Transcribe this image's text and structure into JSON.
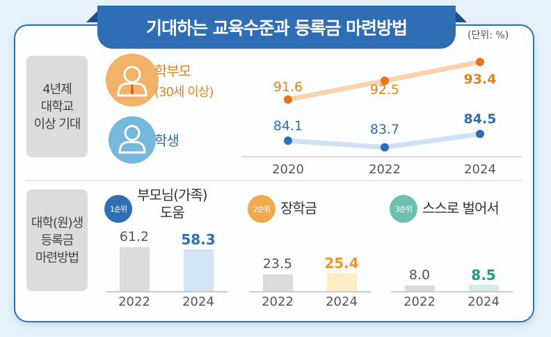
{
  "title": "기대하는 교육수준과 등록금 마련방법",
  "unit": "(단위: %)",
  "section1": {
    "label": "4년제\n대학교\n이상 기대",
    "parent_label": "학부모",
    "parent_sub": "(30세 이상)",
    "student_label": "학생"
  },
  "section2": {
    "label": "대학(원)생\n등록금\n마련방법"
  },
  "colors": {
    "blue": "#2f6db5",
    "orange": "#e0831b",
    "teal": "#1a9e8a"
  },
  "chart_data": [
    {
      "type": "line",
      "x": [
        "2020",
        "2022",
        "2024"
      ],
      "series": [
        {
          "name": "학부모 (30세 이상)",
          "values": [
            91.6,
            92.5,
            93.4
          ],
          "color": "#e8731a"
        },
        {
          "name": "학생",
          "values": [
            84.1,
            83.7,
            84.5
          ],
          "color": "#2f6db5"
        }
      ]
    },
    {
      "type": "bar",
      "groups": [
        {
          "rank": "1순위",
          "label": "부모님(가족)\n도움",
          "categories": [
            "2022",
            "2024"
          ],
          "values": [
            61.2,
            58.3
          ],
          "color": "#2f6db5"
        },
        {
          "rank": "2순위",
          "label": "장학금",
          "categories": [
            "2022",
            "2024"
          ],
          "values": [
            23.5,
            25.4
          ],
          "color": "#f0961e"
        },
        {
          "rank": "3순위",
          "label": "스스로 벌어서",
          "categories": [
            "2022",
            "2024"
          ],
          "values": [
            8.0,
            8.5
          ],
          "color": "#1a9e8a"
        }
      ]
    }
  ]
}
